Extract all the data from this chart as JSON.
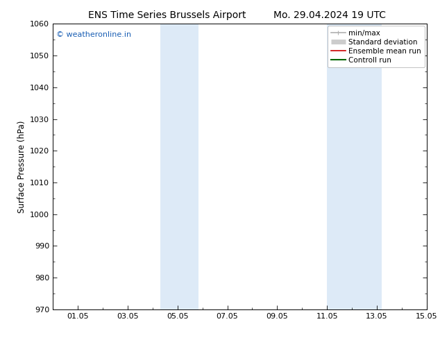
{
  "title_left": "ENS Time Series Brussels Airport",
  "title_right": "Mo. 29.04.2024 19 UTC",
  "ylabel": "Surface Pressure (hPa)",
  "ylim": [
    970,
    1060
  ],
  "yticks": [
    970,
    980,
    990,
    1000,
    1010,
    1020,
    1030,
    1040,
    1050,
    1060
  ],
  "xlim": [
    0,
    15
  ],
  "xtick_labels": [
    "01.05",
    "03.05",
    "05.05",
    "07.05",
    "09.05",
    "11.05",
    "13.05",
    "15.05"
  ],
  "xtick_positions": [
    1,
    3,
    5,
    7,
    9,
    11,
    13,
    15
  ],
  "shaded_bands": [
    {
      "x_start": 4.3,
      "x_end": 5.85
    },
    {
      "x_start": 11.0,
      "x_end": 13.2
    }
  ],
  "shade_color": "#ddeaf7",
  "watermark_text": "© weatheronline.in",
  "watermark_color": "#1a5fb4",
  "background_color": "#ffffff",
  "legend_items": [
    {
      "label": "min/max",
      "color": "#b0b0b0",
      "lw": 1.2,
      "style": "solid",
      "type": "minmax"
    },
    {
      "label": "Standard deviation",
      "color": "#cccccc",
      "lw": 5,
      "style": "solid",
      "type": "band"
    },
    {
      "label": "Ensemble mean run",
      "color": "#cc0000",
      "lw": 1.2,
      "style": "solid",
      "type": "line"
    },
    {
      "label": "Controll run",
      "color": "#006600",
      "lw": 1.5,
      "style": "solid",
      "type": "line"
    }
  ],
  "title_fontsize": 10,
  "axis_label_fontsize": 8.5,
  "tick_fontsize": 8,
  "watermark_fontsize": 8,
  "legend_fontsize": 7.5
}
